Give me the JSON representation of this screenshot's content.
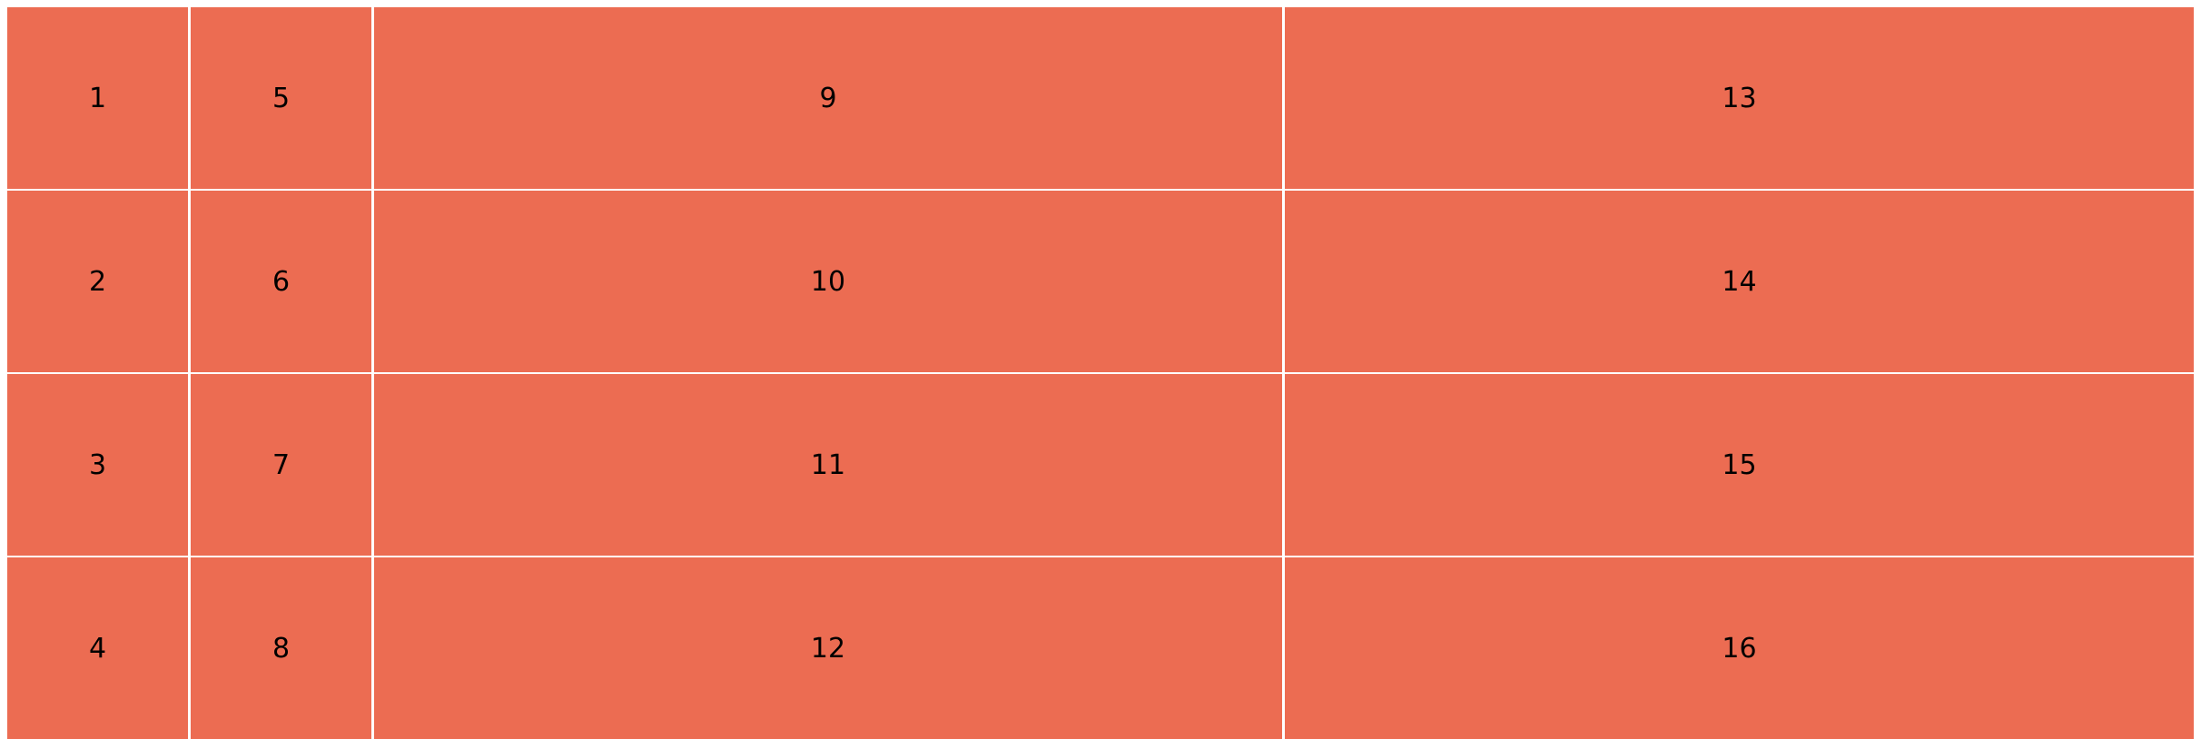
{
  "colors": {
    "cell_background": "#ec6c52",
    "gap": "#ffffff",
    "text": "#000000"
  },
  "cells": [
    "1",
    "2",
    "3",
    "4",
    "5",
    "6",
    "7",
    "8",
    "9",
    "10",
    "11",
    "12",
    "13",
    "14",
    "15",
    "16"
  ]
}
